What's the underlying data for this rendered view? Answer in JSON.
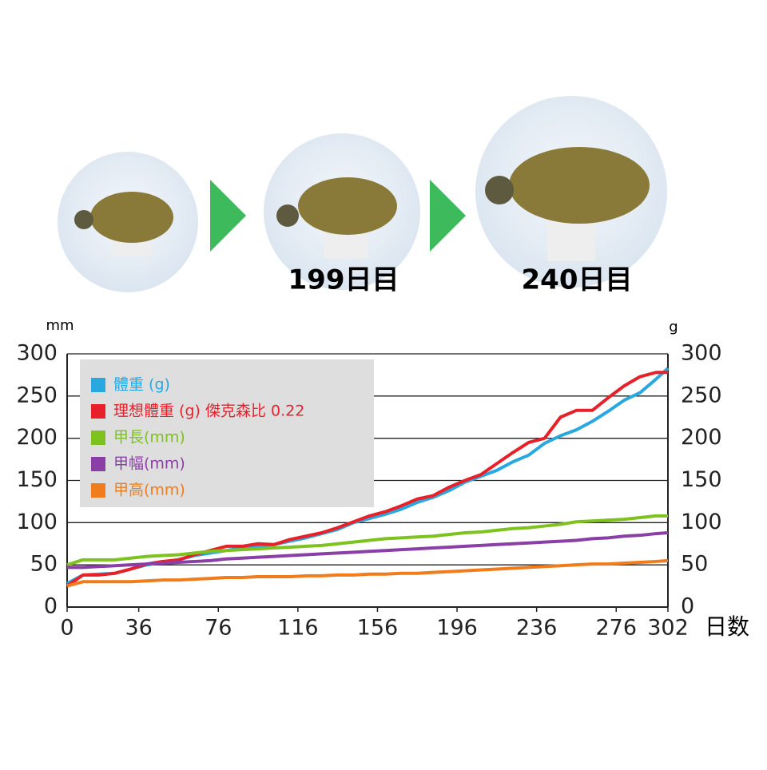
{
  "chart_data": {
    "type": "line",
    "annotations": [
      "199日目",
      "240日目"
    ],
    "ylabel": "mm",
    "y2label": "g",
    "xlabel": "日数",
    "x": [
      0,
      8,
      16,
      24,
      32,
      40,
      48,
      56,
      64,
      72,
      80,
      88,
      96,
      104,
      112,
      120,
      128,
      136,
      144,
      152,
      160,
      168,
      176,
      184,
      192,
      200,
      208,
      216,
      224,
      232,
      240,
      248,
      256,
      264,
      272,
      280,
      288,
      296,
      302
    ],
    "series": [
      {
        "name": "體重 (g)",
        "color": "#29a8e0",
        "axis": "y2",
        "values": [
          28,
          38,
          39,
          40,
          45,
          50,
          53,
          56,
          61,
          64,
          67,
          70,
          72,
          74,
          78,
          82,
          87,
          92,
          100,
          105,
          110,
          116,
          124,
          130,
          138,
          148,
          155,
          162,
          172,
          180,
          194,
          203,
          210,
          220,
          232,
          245,
          254,
          270,
          283
        ]
      },
      {
        "name": "理想體重 (g) 傑克森比 0.22",
        "color": "#e8202a",
        "axis": "y2",
        "values": [
          25,
          38,
          38,
          40,
          45,
          51,
          54,
          56,
          62,
          67,
          72,
          72,
          75,
          74,
          80,
          84,
          88,
          94,
          101,
          108,
          113,
          120,
          128,
          132,
          142,
          150,
          157,
          170,
          183,
          195,
          200,
          225,
          233,
          233,
          248,
          262,
          273,
          278,
          278
        ]
      },
      {
        "name": "甲長(mm)",
        "color": "#7dc21e",
        "values": [
          50,
          56,
          56,
          56,
          58,
          60,
          61,
          62,
          64,
          66,
          67,
          68,
          69,
          70,
          71,
          72,
          73,
          75,
          77,
          79,
          81,
          82,
          83,
          84,
          86,
          88,
          89,
          91,
          93,
          94,
          96,
          98,
          101,
          102,
          103,
          104,
          106,
          108,
          108
        ]
      },
      {
        "name": "甲幅(mm)",
        "color": "#8a3fa6",
        "values": [
          47,
          47,
          48,
          49,
          50,
          51,
          52,
          53,
          54,
          55,
          57,
          58,
          59,
          60,
          61,
          62,
          63,
          64,
          65,
          66,
          67,
          68,
          69,
          70,
          71,
          72,
          73,
          74,
          75,
          76,
          77,
          78,
          79,
          81,
          82,
          84,
          85,
          87,
          88
        ]
      },
      {
        "name": "甲高(mm)",
        "color": "#f07c1c",
        "values": [
          25,
          30,
          30,
          30,
          30,
          31,
          32,
          32,
          33,
          34,
          35,
          35,
          36,
          36,
          36,
          37,
          37,
          38,
          38,
          39,
          39,
          40,
          40,
          41,
          42,
          43,
          44,
          45,
          46,
          47,
          48,
          49,
          50,
          51,
          51,
          52,
          53,
          54,
          55
        ]
      }
    ],
    "xlim": [
      0,
      302
    ],
    "xticks": [
      0,
      36,
      76,
      116,
      156,
      196,
      236,
      276,
      302
    ],
    "ylim": [
      0,
      300
    ],
    "yticks": [
      0,
      50,
      100,
      150,
      200,
      250,
      300
    ],
    "y2lim": [
      0,
      300
    ],
    "y2ticks": [
      0,
      50,
      100,
      150,
      200,
      250,
      300
    ],
    "grid": true,
    "legend_loc": "upper left"
  }
}
